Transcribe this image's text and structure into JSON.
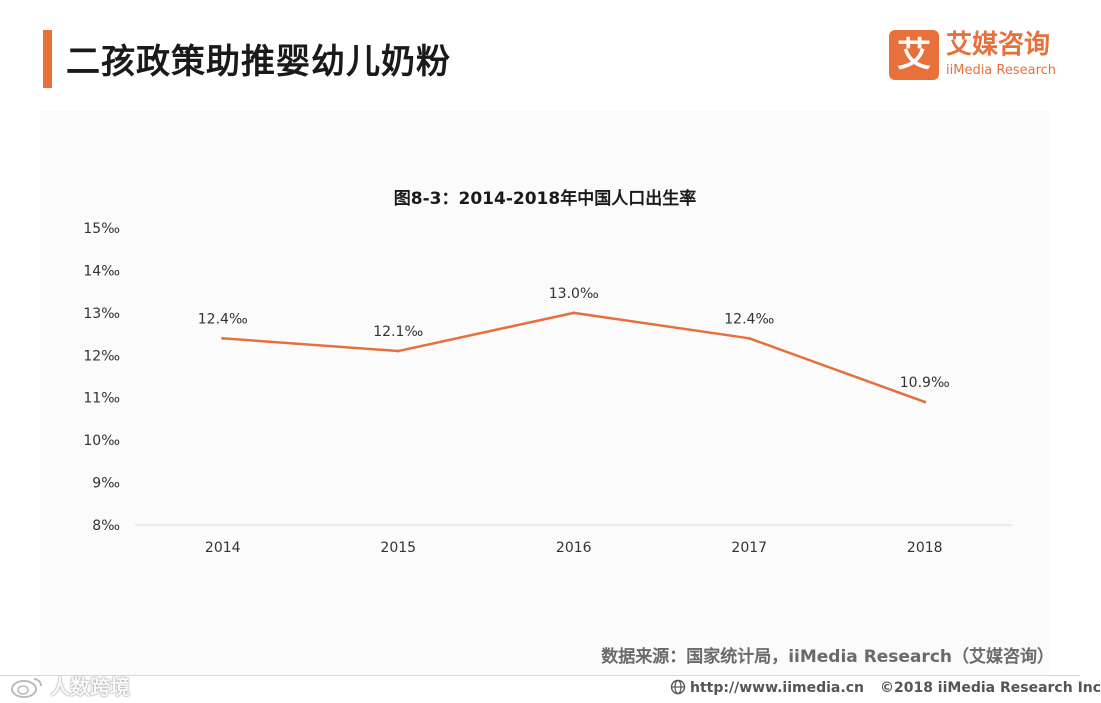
{
  "header": {
    "title": "二孩政策助推婴幼儿奶粉",
    "logo_mark": "艾",
    "logo_cn": "艾媒咨询",
    "logo_en": "iiMedia Research"
  },
  "chart_data": {
    "type": "line",
    "title": "图8-3：2014-2018年中国人口出生率",
    "categories": [
      "2014",
      "2015",
      "2016",
      "2017",
      "2018"
    ],
    "series": [
      {
        "name": "人口出生率",
        "values": [
          12.4,
          12.1,
          13.0,
          12.4,
          10.9
        ],
        "labels": [
          "12.4‰",
          "12.1‰",
          "13.0‰",
          "12.4‰",
          "10.9‰"
        ]
      }
    ],
    "yticks": [
      "8‰",
      "9‰",
      "10‰",
      "11‰",
      "12‰",
      "13‰",
      "14‰",
      "15‰"
    ],
    "ylim": [
      8,
      15
    ],
    "xlabel": "",
    "ylabel": "",
    "color": "#e4703d"
  },
  "source": "数据来源：国家统计局，iiMedia Research（艾媒咨询）",
  "footer": {
    "url": "http://www.iimedia.cn",
    "copyright": "©2018  iiMedia Research  Inc"
  },
  "watermark": "人数跨境"
}
